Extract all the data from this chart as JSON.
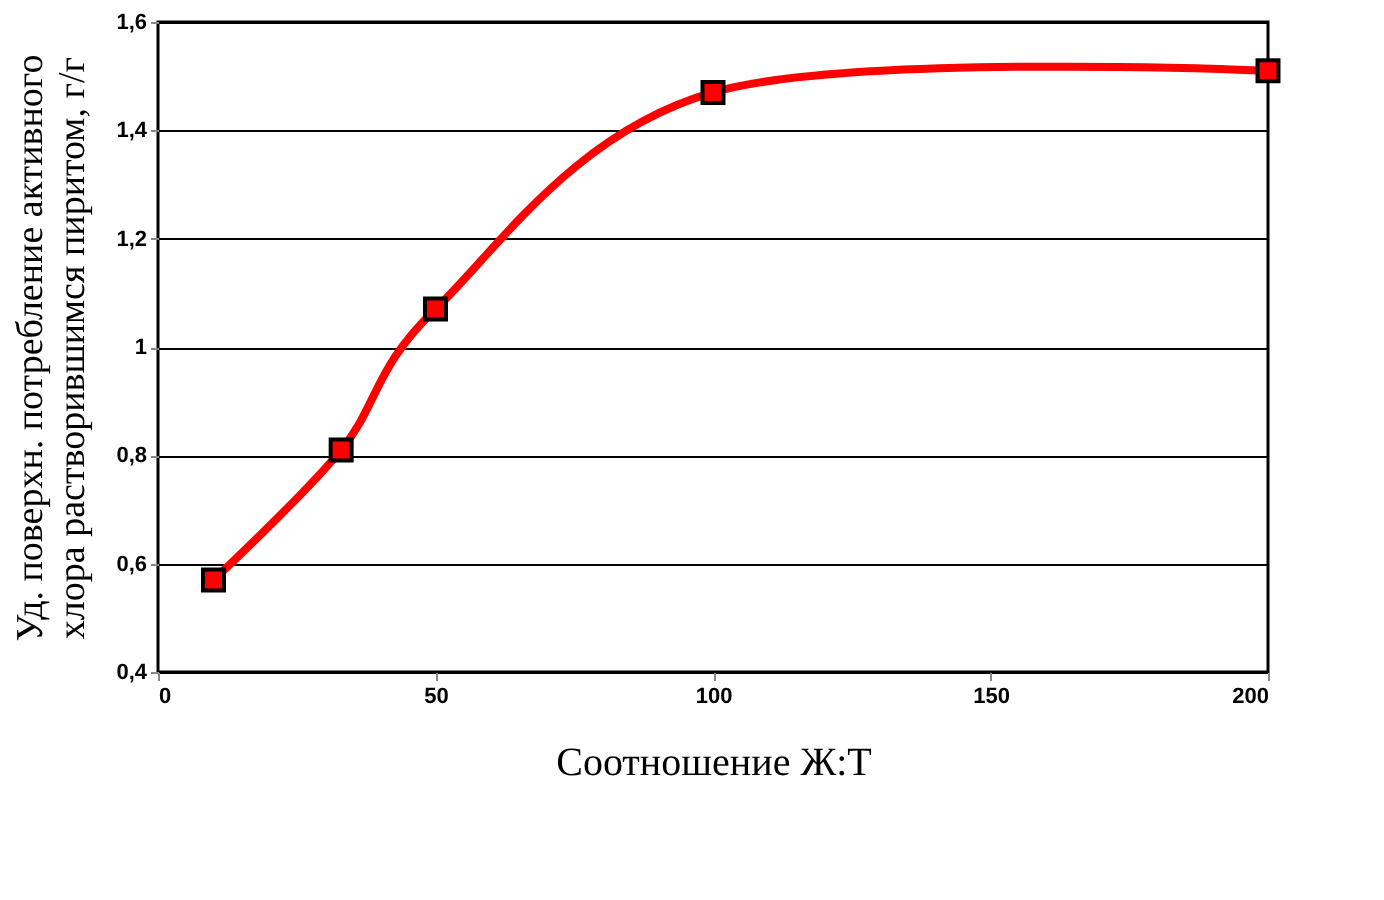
{
  "chart_data": {
    "type": "line",
    "x": [
      10,
      33,
      50,
      100,
      200
    ],
    "series": [
      {
        "color": "#ff0000",
        "values": [
          0.57,
          0.81,
          1.07,
          1.47,
          1.51
        ]
      }
    ],
    "xlabel": "Соотношение Ж:Т",
    "ylabel": "Уд. поверхн. потребление активного\nхлора растворившимся пиритом, г/г",
    "xlim": [
      0,
      200
    ],
    "xticks": [
      0,
      50,
      100,
      150,
      200
    ],
    "ylim": [
      0.4,
      1.6
    ],
    "yticks": [
      {
        "value": 0.4,
        "label": "0,4"
      },
      {
        "value": 0.6,
        "label": "0,6"
      },
      {
        "value": 0.8,
        "label": "0,8"
      },
      1,
      {
        "value": 1.2,
        "label": "1,2"
      },
      {
        "value": 1.4,
        "label": "1,4"
      },
      {
        "value": 1.6,
        "label": "1,6"
      }
    ],
    "grid": "y",
    "marker": "square",
    "line_style": "solid"
  }
}
